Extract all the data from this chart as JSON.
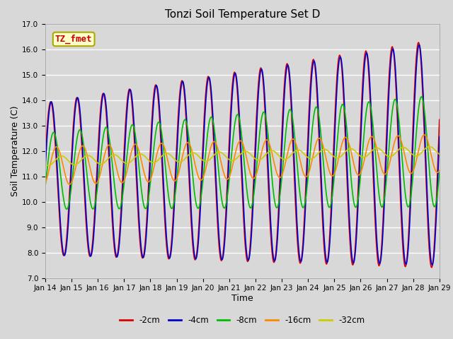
{
  "title": "Tonzi Soil Temperature Set D",
  "xlabel": "Time",
  "ylabel": "Soil Temperature (C)",
  "ylim": [
    7.0,
    17.0
  ],
  "yticks": [
    7.0,
    8.0,
    9.0,
    10.0,
    11.0,
    12.0,
    13.0,
    14.0,
    15.0,
    16.0,
    17.0
  ],
  "xtick_labels": [
    "Jan 14",
    "Jan 15",
    "Jan 16",
    "Jan 17",
    "Jan 18",
    "Jan 19",
    "Jan 20",
    "Jan 21",
    "Jan 22",
    "Jan 23",
    "Jan 24",
    "Jan 25",
    "Jan 26",
    "Jan 27",
    "Jan 28",
    "Jan 29"
  ],
  "series": [
    {
      "label": "-2cm",
      "color": "#dd0000",
      "lw": 1.2
    },
    {
      "label": "-4cm",
      "color": "#0000cc",
      "lw": 1.2
    },
    {
      "label": "-8cm",
      "color": "#00bb00",
      "lw": 1.2
    },
    {
      "label": "-16cm",
      "color": "#ff8800",
      "lw": 1.2
    },
    {
      "label": "-32cm",
      "color": "#cccc00",
      "lw": 1.2
    }
  ],
  "annotation_text": "TZ_fmet",
  "annotation_color": "#cc0000",
  "annotation_bg": "#ffffcc",
  "bg_color": "#d8d8d8",
  "title_fontsize": 11,
  "axis_fontsize": 9,
  "tick_fontsize": 7.5
}
